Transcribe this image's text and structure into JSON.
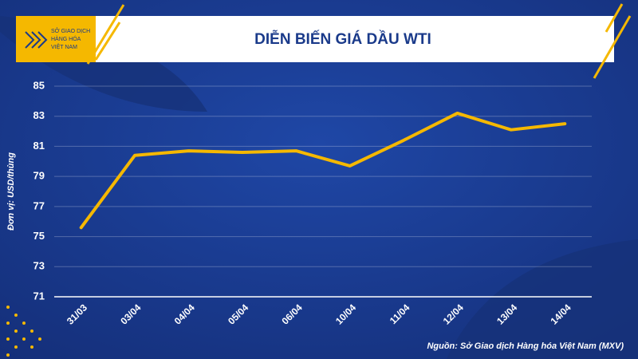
{
  "logo": [
    "SỞ GIAO DỊCH",
    "HÀNG HÓA",
    "VIỆT NAM"
  ],
  "chart_data": {
    "type": "line",
    "title": "DIỄN BIẾN GIÁ DẦU WTI",
    "y_label": "Đơn vị: USD/thùng",
    "source": "Nguồn: Sở Giao dịch Hàng hóa Việt Nam (MXV)",
    "categories": [
      "31/03",
      "03/04",
      "04/04",
      "05/04",
      "06/04",
      "10/04",
      "11/04",
      "12/04",
      "13/04",
      "14/04"
    ],
    "values": [
      75.6,
      80.4,
      80.7,
      80.6,
      80.7,
      79.7,
      81.4,
      83.2,
      82.1,
      82.5
    ],
    "color": "#f5b800",
    "ylim": [
      71,
      85
    ],
    "yticks": [
      71,
      73,
      75,
      77,
      79,
      81,
      83,
      85
    ],
    "grid": true
  }
}
